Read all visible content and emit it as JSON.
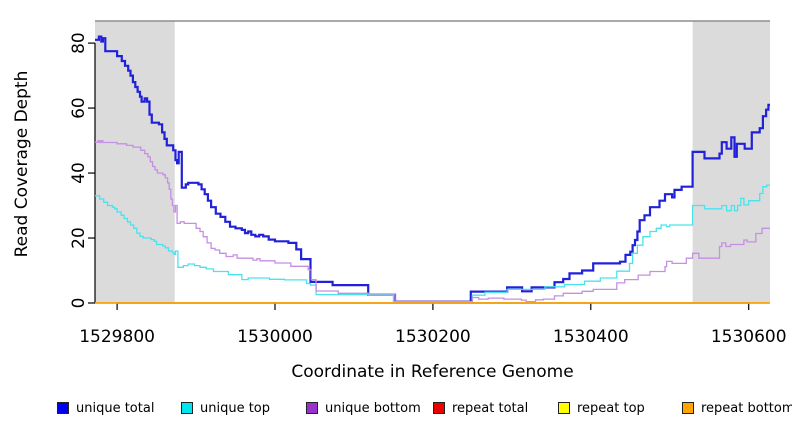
{
  "chart_data": {
    "type": "line",
    "title": "",
    "xlabel": "Coordinate in Reference Genome",
    "ylabel": "Read Coverage Depth",
    "step": "after",
    "grid": false,
    "legend_position": "bottom",
    "x_axis": {
      "range": [
        1529772,
        1530627
      ],
      "ticks": [
        1529800,
        1530000,
        1530200,
        1530400,
        1530600
      ]
    },
    "y_axis": {
      "range": [
        0,
        86.8
      ],
      "ticks": [
        0,
        20,
        40,
        60,
        80
      ]
    },
    "shade_color": "#DBDBDB",
    "top_border_color": "#8E8E8E",
    "shaded_regions": [
      {
        "from": 1529772,
        "to": 1529873
      },
      {
        "from": 1530529,
        "to": 1530627
      }
    ],
    "series": [
      {
        "name": "unique total",
        "color": "#2121D9",
        "width": 2.2,
        "points": [
          [
            1529772,
            81
          ],
          [
            1529777,
            82
          ],
          [
            1529780,
            80.5
          ],
          [
            1529782,
            81.5
          ],
          [
            1529785,
            77.5
          ],
          [
            1529800,
            76
          ],
          [
            1529806,
            74.5
          ],
          [
            1529810,
            73
          ],
          [
            1529814,
            71.5
          ],
          [
            1529817,
            70
          ],
          [
            1529820,
            68
          ],
          [
            1529823,
            66.5
          ],
          [
            1529826,
            65
          ],
          [
            1529829,
            63.5
          ],
          [
            1529831,
            62
          ],
          [
            1529835,
            63
          ],
          [
            1529838,
            62
          ],
          [
            1529841,
            58
          ],
          [
            1529844,
            55.5
          ],
          [
            1529853,
            55
          ],
          [
            1529857,
            52.5
          ],
          [
            1529860,
            50.5
          ],
          [
            1529863,
            48.5
          ],
          [
            1529871,
            47
          ],
          [
            1529874,
            44
          ],
          [
            1529876,
            43
          ],
          [
            1529878,
            46.5
          ],
          [
            1529882,
            35.5
          ],
          [
            1529887,
            36.5
          ],
          [
            1529890,
            37
          ],
          [
            1529903,
            36.5
          ],
          [
            1529907,
            35
          ],
          [
            1529911,
            33.5
          ],
          [
            1529915,
            31.5
          ],
          [
            1529919,
            29.5
          ],
          [
            1529925,
            27.5
          ],
          [
            1529931,
            26.5
          ],
          [
            1529937,
            25
          ],
          [
            1529943,
            23.5
          ],
          [
            1529950,
            23
          ],
          [
            1529958,
            22.5
          ],
          [
            1529962,
            21.5
          ],
          [
            1529966,
            22
          ],
          [
            1529970,
            21
          ],
          [
            1529975,
            20.5
          ],
          [
            1529980,
            21
          ],
          [
            1529985,
            20.5
          ],
          [
            1529992,
            19.5
          ],
          [
            1530000,
            19
          ],
          [
            1530017,
            18.5
          ],
          [
            1530027,
            16.5
          ],
          [
            1530033,
            13.5
          ],
          [
            1530045,
            6.5
          ],
          [
            1530073,
            5.5
          ],
          [
            1530118,
            2.5
          ],
          [
            1530152,
            0.4
          ],
          [
            1530248,
            3.5
          ],
          [
            1530294,
            4.8
          ],
          [
            1530313,
            3.6
          ],
          [
            1530325,
            4.8
          ],
          [
            1530354,
            6.4
          ],
          [
            1530365,
            7.4
          ],
          [
            1530373,
            9.1
          ],
          [
            1530389,
            10
          ],
          [
            1530403,
            12.2
          ],
          [
            1530437,
            12.7
          ],
          [
            1530444,
            14.8
          ],
          [
            1530450,
            15.8
          ],
          [
            1530453,
            17.8
          ],
          [
            1530456,
            19.4
          ],
          [
            1530459,
            22
          ],
          [
            1530462,
            25.5
          ],
          [
            1530468,
            27
          ],
          [
            1530475,
            29.5
          ],
          [
            1530487,
            31.5
          ],
          [
            1530494,
            33.5
          ],
          [
            1530503,
            32.5
          ],
          [
            1530506,
            34.8
          ],
          [
            1530515,
            35.8
          ],
          [
            1530529,
            46.5
          ],
          [
            1530544,
            44.5
          ],
          [
            1530563,
            46
          ],
          [
            1530566,
            49.5
          ],
          [
            1530572,
            47.5
          ],
          [
            1530578,
            51
          ],
          [
            1530582,
            45
          ],
          [
            1530585,
            49
          ],
          [
            1530595,
            47.5
          ],
          [
            1530604,
            52.5
          ],
          [
            1530614,
            53.8
          ],
          [
            1530618,
            57.5
          ],
          [
            1530622,
            59.5
          ],
          [
            1530625,
            61
          ],
          [
            1530627,
            61
          ]
        ]
      },
      {
        "name": "unique top",
        "color": "#49E3EE",
        "width": 1.3,
        "points": [
          [
            1529772,
            33
          ],
          [
            1529778,
            32
          ],
          [
            1529783,
            31
          ],
          [
            1529788,
            30
          ],
          [
            1529794,
            29.5
          ],
          [
            1529797,
            29
          ],
          [
            1529800,
            28
          ],
          [
            1529805,
            27
          ],
          [
            1529809,
            26
          ],
          [
            1529813,
            25
          ],
          [
            1529817,
            24
          ],
          [
            1529821,
            23
          ],
          [
            1529825,
            21.5
          ],
          [
            1529829,
            20.5
          ],
          [
            1529833,
            20
          ],
          [
            1529843,
            19.5
          ],
          [
            1529847,
            19
          ],
          [
            1529850,
            18
          ],
          [
            1529858,
            17.5
          ],
          [
            1529861,
            17
          ],
          [
            1529865,
            16
          ],
          [
            1529870,
            15.5
          ],
          [
            1529872,
            15
          ],
          [
            1529874,
            16
          ],
          [
            1529877,
            11
          ],
          [
            1529884,
            11.5
          ],
          [
            1529890,
            12
          ],
          [
            1529898,
            11.5
          ],
          [
            1529905,
            11
          ],
          [
            1529913,
            10.5
          ],
          [
            1529922,
            9.7
          ],
          [
            1529941,
            8.7
          ],
          [
            1529958,
            7.2
          ],
          [
            1529966,
            7.7
          ],
          [
            1529993,
            7.3
          ],
          [
            1530012,
            7.1
          ],
          [
            1530040,
            6
          ],
          [
            1530045,
            5.5
          ],
          [
            1530052,
            2.6
          ],
          [
            1530118,
            2.4
          ],
          [
            1530150,
            0.4
          ],
          [
            1530250,
            2.4
          ],
          [
            1530266,
            3.3
          ],
          [
            1530294,
            4.2
          ],
          [
            1530342,
            5
          ],
          [
            1530367,
            5.7
          ],
          [
            1530392,
            6.7
          ],
          [
            1530412,
            7.7
          ],
          [
            1530433,
            9.8
          ],
          [
            1530449,
            12.2
          ],
          [
            1530453,
            15.3
          ],
          [
            1530459,
            17.8
          ],
          [
            1530466,
            20.4
          ],
          [
            1530475,
            22
          ],
          [
            1530483,
            23
          ],
          [
            1530489,
            24
          ],
          [
            1530496,
            23.5
          ],
          [
            1530500,
            24
          ],
          [
            1530529,
            30
          ],
          [
            1530544,
            29
          ],
          [
            1530566,
            30
          ],
          [
            1530572,
            28.4
          ],
          [
            1530578,
            30
          ],
          [
            1530582,
            28.4
          ],
          [
            1530586,
            30
          ],
          [
            1530590,
            32.2
          ],
          [
            1530594,
            30.2
          ],
          [
            1530600,
            31.5
          ],
          [
            1530614,
            33.7
          ],
          [
            1530618,
            35.8
          ],
          [
            1530623,
            36.3
          ],
          [
            1530627,
            36.3
          ]
        ]
      },
      {
        "name": "unique bottom",
        "color": "#C58FE3",
        "width": 1.3,
        "points": [
          [
            1529772,
            49.5
          ],
          [
            1529776,
            50
          ],
          [
            1529778,
            49.4
          ],
          [
            1529780,
            50
          ],
          [
            1529782,
            49.4
          ],
          [
            1529800,
            49
          ],
          [
            1529812,
            48.5
          ],
          [
            1529820,
            48
          ],
          [
            1529830,
            47
          ],
          [
            1529835,
            46
          ],
          [
            1529839,
            45
          ],
          [
            1529842,
            43.5
          ],
          [
            1529845,
            42
          ],
          [
            1529848,
            41
          ],
          [
            1529851,
            40
          ],
          [
            1529858,
            39.5
          ],
          [
            1529861,
            38.5
          ],
          [
            1529864,
            37
          ],
          [
            1529866,
            35
          ],
          [
            1529868,
            32
          ],
          [
            1529870,
            30
          ],
          [
            1529872,
            28
          ],
          [
            1529874,
            30
          ],
          [
            1529876,
            24.5
          ],
          [
            1529880,
            25
          ],
          [
            1529885,
            24.5
          ],
          [
            1529900,
            23
          ],
          [
            1529905,
            22
          ],
          [
            1529909,
            20.4
          ],
          [
            1529914,
            18.5
          ],
          [
            1529919,
            16.8
          ],
          [
            1529924,
            16.3
          ],
          [
            1529930,
            15.3
          ],
          [
            1529938,
            14.3
          ],
          [
            1529947,
            14.8
          ],
          [
            1529952,
            13.8
          ],
          [
            1529972,
            13.2
          ],
          [
            1529977,
            13.6
          ],
          [
            1529981,
            13
          ],
          [
            1530000,
            12.3
          ],
          [
            1530020,
            11.3
          ],
          [
            1530042,
            10.2
          ],
          [
            1530046,
            7.2
          ],
          [
            1530052,
            3.7
          ],
          [
            1530080,
            3
          ],
          [
            1530118,
            2.8
          ],
          [
            1530152,
            0.3
          ],
          [
            1530250,
            1.7
          ],
          [
            1530258,
            1.2
          ],
          [
            1530270,
            1.5
          ],
          [
            1530290,
            1.2
          ],
          [
            1530312,
            0.9
          ],
          [
            1530318,
            0.4
          ],
          [
            1530330,
            1
          ],
          [
            1530340,
            1.2
          ],
          [
            1530354,
            2.2
          ],
          [
            1530365,
            3
          ],
          [
            1530389,
            3.6
          ],
          [
            1530403,
            4.2
          ],
          [
            1530433,
            6.2
          ],
          [
            1530443,
            7.2
          ],
          [
            1530460,
            8.6
          ],
          [
            1530475,
            9.7
          ],
          [
            1530494,
            11.2
          ],
          [
            1530496,
            12.8
          ],
          [
            1530503,
            12.2
          ],
          [
            1530521,
            13.8
          ],
          [
            1530529,
            15.3
          ],
          [
            1530537,
            13.8
          ],
          [
            1530563,
            17.4
          ],
          [
            1530566,
            18.5
          ],
          [
            1530571,
            17.4
          ],
          [
            1530577,
            18
          ],
          [
            1530594,
            19.4
          ],
          [
            1530598,
            18.8
          ],
          [
            1530609,
            21.4
          ],
          [
            1530617,
            23
          ],
          [
            1530627,
            23
          ]
        ]
      },
      {
        "name": "repeat total",
        "color": "#DD0000",
        "width": 1.3,
        "points": [
          [
            1529772,
            0
          ],
          [
            1530627,
            0
          ]
        ]
      },
      {
        "name": "repeat top",
        "color": "#FFFF00",
        "width": 1.3,
        "points": [
          [
            1529772,
            0
          ],
          [
            1530627,
            0
          ]
        ]
      },
      {
        "name": "repeat bottom",
        "color": "#FFA500",
        "width": 1.6,
        "points": [
          [
            1529772,
            0
          ],
          [
            1530627,
            0
          ]
        ]
      }
    ]
  },
  "legend": {
    "items": [
      {
        "label": "unique total",
        "color": "#0000EE"
      },
      {
        "label": "unique top",
        "color": "#00E5EE"
      },
      {
        "label": "unique bottom",
        "color": "#9932CC"
      },
      {
        "label": "repeat total",
        "color": "#EE0000"
      },
      {
        "label": "repeat top",
        "color": "#FFFF00"
      },
      {
        "label": "repeat bottom",
        "color": "#FFA500"
      }
    ]
  }
}
